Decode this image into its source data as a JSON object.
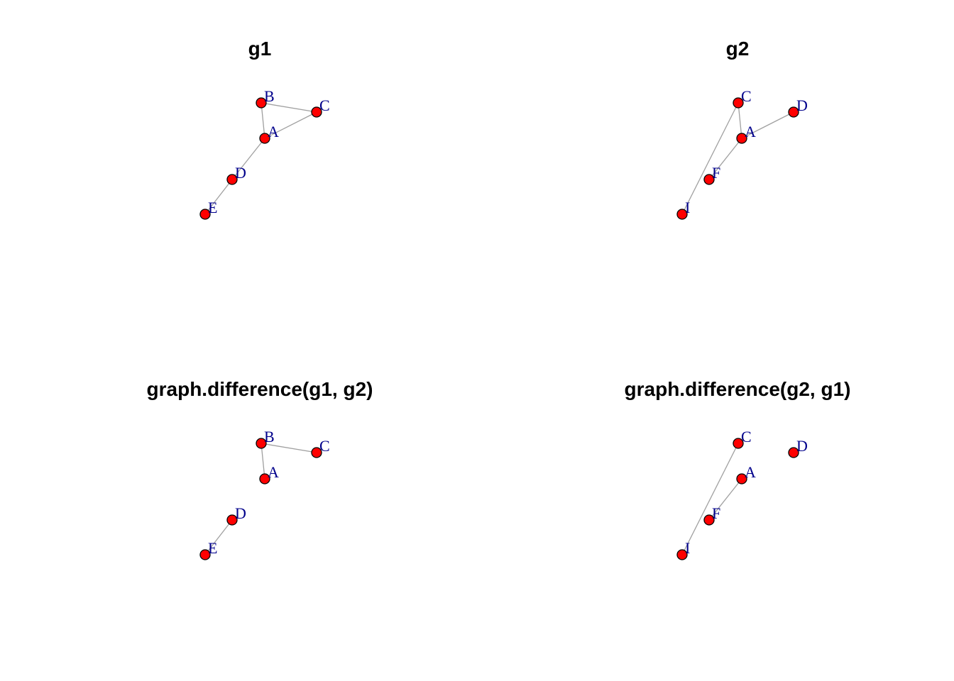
{
  "style": {
    "node_fill": "#ff0000",
    "node_border": "#000000",
    "edge_color": "#a0a0a0",
    "label_color": "#00008b",
    "background": "#ffffff"
  },
  "panels": [
    {
      "title": "g1",
      "nodes": [
        "B",
        "C",
        "A",
        "D",
        "E"
      ],
      "edges": [
        [
          "B",
          "C"
        ],
        [
          "B",
          "A"
        ],
        [
          "C",
          "A"
        ],
        [
          "A",
          "D"
        ],
        [
          "D",
          "E"
        ]
      ]
    },
    {
      "title": "g2",
      "nodes": [
        "C",
        "D",
        "A",
        "F",
        "I"
      ],
      "edges": [
        [
          "C",
          "A"
        ],
        [
          "A",
          "D"
        ],
        [
          "A",
          "F"
        ],
        [
          "C",
          "I"
        ]
      ]
    },
    {
      "title": "graph.difference(g1, g2)",
      "nodes": [
        "B",
        "C",
        "A",
        "D",
        "E"
      ],
      "edges": [
        [
          "B",
          "C"
        ],
        [
          "B",
          "A"
        ],
        [
          "D",
          "E"
        ]
      ]
    },
    {
      "title": "graph.difference(g2, g1)",
      "nodes": [
        "C",
        "D",
        "A",
        "F",
        "I"
      ],
      "edges": [
        [
          "A",
          "F"
        ],
        [
          "C",
          "I"
        ]
      ]
    }
  ]
}
